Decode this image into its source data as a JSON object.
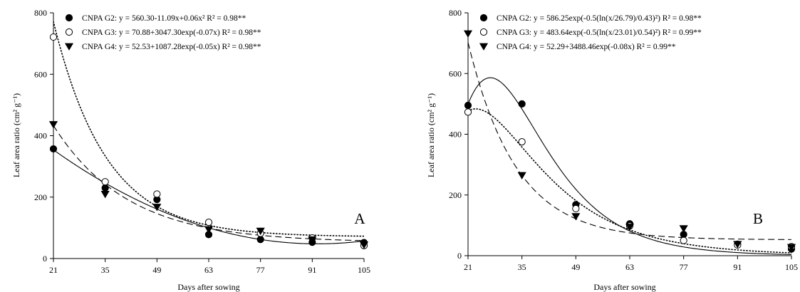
{
  "figure": {
    "panels": [
      "A",
      "B"
    ]
  },
  "chart_data": [
    {
      "type": "scatter",
      "panel_label": "A",
      "xlabel": "Days after sowing",
      "ylabel": "Leaf area ratio (cm² g⁻¹)",
      "xlim": [
        21,
        105
      ],
      "ylim": [
        0,
        800
      ],
      "x_ticks": [
        21,
        35,
        49,
        63,
        77,
        91,
        105
      ],
      "y_ticks": [
        0,
        200,
        400,
        600,
        800
      ],
      "grid": false,
      "legend_position": "top-left",
      "series": [
        {
          "name": "CNPA G2",
          "marker": "filled-circle",
          "line_style": "solid",
          "equation": "y = 560.30-11.09x+0.06x² R² = 0.98**",
          "x": [
            21,
            35,
            49,
            63,
            77,
            91,
            105
          ],
          "y": [
            357,
            230,
            192,
            78,
            62,
            53,
            52
          ]
        },
        {
          "name": "CNPA G3",
          "marker": "open-circle",
          "line_style": "dotted",
          "equation": "y = 70.88+3047.30exp(-0.07x) R² = 0.98**",
          "x": [
            21,
            35,
            49,
            63,
            77,
            91,
            105
          ],
          "y": [
            721,
            250,
            210,
            118,
            82,
            67,
            42
          ]
        },
        {
          "name": "CNPA G4",
          "marker": "filled-triangle-down",
          "line_style": "dashed",
          "equation": "y = 52.53+1087.28exp(-0.05x) R² = 0.98**",
          "x": [
            21,
            35,
            49,
            63,
            77,
            91,
            105
          ],
          "y": [
            437,
            210,
            168,
            95,
            90,
            62,
            45
          ]
        }
      ]
    },
    {
      "type": "scatter",
      "panel_label": "B",
      "xlabel": "Days after sowing",
      "ylabel": "Leaf area ratio (cm² g⁻¹)",
      "xlim": [
        21,
        105
      ],
      "ylim": [
        0,
        800
      ],
      "x_ticks": [
        21,
        35,
        49,
        63,
        77,
        91,
        105
      ],
      "y_ticks": [
        0,
        200,
        400,
        600,
        800
      ],
      "grid": false,
      "legend_position": "top-left",
      "series": [
        {
          "name": "CNPA G2",
          "marker": "filled-circle",
          "line_style": "solid",
          "equation": "y = 586.25exp(-0.5(ln(x/26.79)/0.43)²) R² = 0.98**",
          "x": [
            21,
            35,
            49,
            63,
            77,
            91,
            105
          ],
          "y": [
            495,
            500,
            168,
            105,
            70,
            38,
            22
          ]
        },
        {
          "name": "CNPA G3",
          "marker": "open-circle",
          "line_style": "dotted",
          "equation": "y = 483.64exp(-0.5(ln(x/23.01)/0.54)²) R² = 0.99**",
          "x": [
            21,
            35,
            49,
            63,
            77,
            91,
            105
          ],
          "y": [
            473,
            375,
            155,
            98,
            50,
            35,
            30
          ]
        },
        {
          "name": "CNPA G4",
          "marker": "filled-triangle-down",
          "line_style": "dashed",
          "equation": "y = 52.29+3488.46exp(-0.08x) R² = 0.99**",
          "x": [
            21,
            35,
            49,
            63,
            77,
            91,
            105
          ],
          "y": [
            732,
            265,
            130,
            95,
            90,
            38,
            28
          ]
        }
      ]
    }
  ]
}
